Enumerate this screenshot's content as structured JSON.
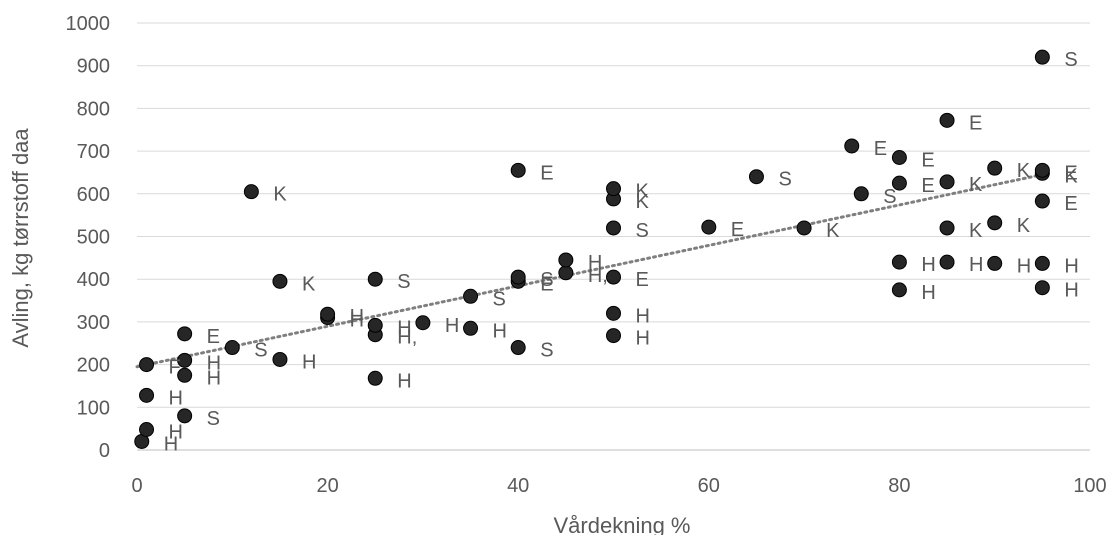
{
  "chart_data": {
    "type": "scatter",
    "xlabel": "Vårdekning %",
    "ylabel": "Avling, kg tørrstoff daa",
    "xlim": [
      0,
      100
    ],
    "ylim": [
      0,
      1000
    ],
    "x_ticks": [
      0,
      20,
      40,
      60,
      80,
      100
    ],
    "y_ticks": [
      0,
      100,
      200,
      300,
      400,
      500,
      600,
      700,
      800,
      900,
      1000
    ],
    "grid": "horizontal",
    "trendline": {
      "type": "linear",
      "style": "dotted",
      "from": [
        0,
        195
      ],
      "to": [
        95,
        645
      ]
    },
    "colors": {
      "marker": "#262626",
      "trendline": "#7f7f7f",
      "grid": "#d9d9d9",
      "text": "#595959"
    },
    "points": [
      {
        "x": 0.5,
        "y": 20,
        "label": "H"
      },
      {
        "x": 1,
        "y": 48,
        "label": "H"
      },
      {
        "x": 1,
        "y": 128,
        "label": "H"
      },
      {
        "x": 1,
        "y": 200,
        "label": "F"
      },
      {
        "x": 5,
        "y": 80,
        "label": "S"
      },
      {
        "x": 5,
        "y": 175,
        "label": "H"
      },
      {
        "x": 5,
        "y": 210,
        "label": "H"
      },
      {
        "x": 5,
        "y": 272,
        "label": "E"
      },
      {
        "x": 10,
        "y": 240,
        "label": "S"
      },
      {
        "x": 12,
        "y": 605,
        "label": "K"
      },
      {
        "x": 15,
        "y": 212,
        "label": "H"
      },
      {
        "x": 15,
        "y": 395,
        "label": "K"
      },
      {
        "x": 20,
        "y": 310,
        "label": "H"
      },
      {
        "x": 20,
        "y": 318,
        "label": "H"
      },
      {
        "x": 25,
        "y": 168,
        "label": "H"
      },
      {
        "x": 25,
        "y": 270,
        "label": "H,"
      },
      {
        "x": 25,
        "y": 292,
        "label": "H"
      },
      {
        "x": 25,
        "y": 400,
        "label": "S"
      },
      {
        "x": 30,
        "y": 298,
        "label": "H"
      },
      {
        "x": 35,
        "y": 285,
        "label": "H"
      },
      {
        "x": 35,
        "y": 360,
        "label": "S"
      },
      {
        "x": 40,
        "y": 240,
        "label": "S"
      },
      {
        "x": 40,
        "y": 395,
        "label": "E"
      },
      {
        "x": 40,
        "y": 405,
        "label": "S"
      },
      {
        "x": 40,
        "y": 655,
        "label": "E"
      },
      {
        "x": 45,
        "y": 415,
        "label": "H,"
      },
      {
        "x": 45,
        "y": 445,
        "label": "H"
      },
      {
        "x": 50,
        "y": 268,
        "label": "H"
      },
      {
        "x": 50,
        "y": 320,
        "label": "H"
      },
      {
        "x": 50,
        "y": 405,
        "label": "E"
      },
      {
        "x": 50,
        "y": 520,
        "label": "S"
      },
      {
        "x": 50,
        "y": 588,
        "label": "K"
      },
      {
        "x": 50,
        "y": 612,
        "label": "K"
      },
      {
        "x": 60,
        "y": 522,
        "label": "E"
      },
      {
        "x": 65,
        "y": 640,
        "label": "S"
      },
      {
        "x": 70,
        "y": 520,
        "label": "K"
      },
      {
        "x": 75,
        "y": 712,
        "label": "E"
      },
      {
        "x": 76,
        "y": 600,
        "label": "S"
      },
      {
        "x": 80,
        "y": 375,
        "label": "H"
      },
      {
        "x": 80,
        "y": 440,
        "label": "H"
      },
      {
        "x": 80,
        "y": 625,
        "label": "E"
      },
      {
        "x": 80,
        "y": 685,
        "label": "E"
      },
      {
        "x": 85,
        "y": 440,
        "label": "H"
      },
      {
        "x": 85,
        "y": 520,
        "label": "K"
      },
      {
        "x": 85,
        "y": 628,
        "label": "K"
      },
      {
        "x": 85,
        "y": 772,
        "label": "E"
      },
      {
        "x": 90,
        "y": 437,
        "label": "H"
      },
      {
        "x": 90,
        "y": 532,
        "label": "K"
      },
      {
        "x": 90,
        "y": 660,
        "label": "K"
      },
      {
        "x": 95,
        "y": 380,
        "label": "H"
      },
      {
        "x": 95,
        "y": 437,
        "label": "H"
      },
      {
        "x": 95,
        "y": 583,
        "label": "E"
      },
      {
        "x": 95,
        "y": 648,
        "label": "K"
      },
      {
        "x": 95,
        "y": 655,
        "label": "E"
      },
      {
        "x": 95,
        "y": 920,
        "label": "S"
      }
    ]
  }
}
